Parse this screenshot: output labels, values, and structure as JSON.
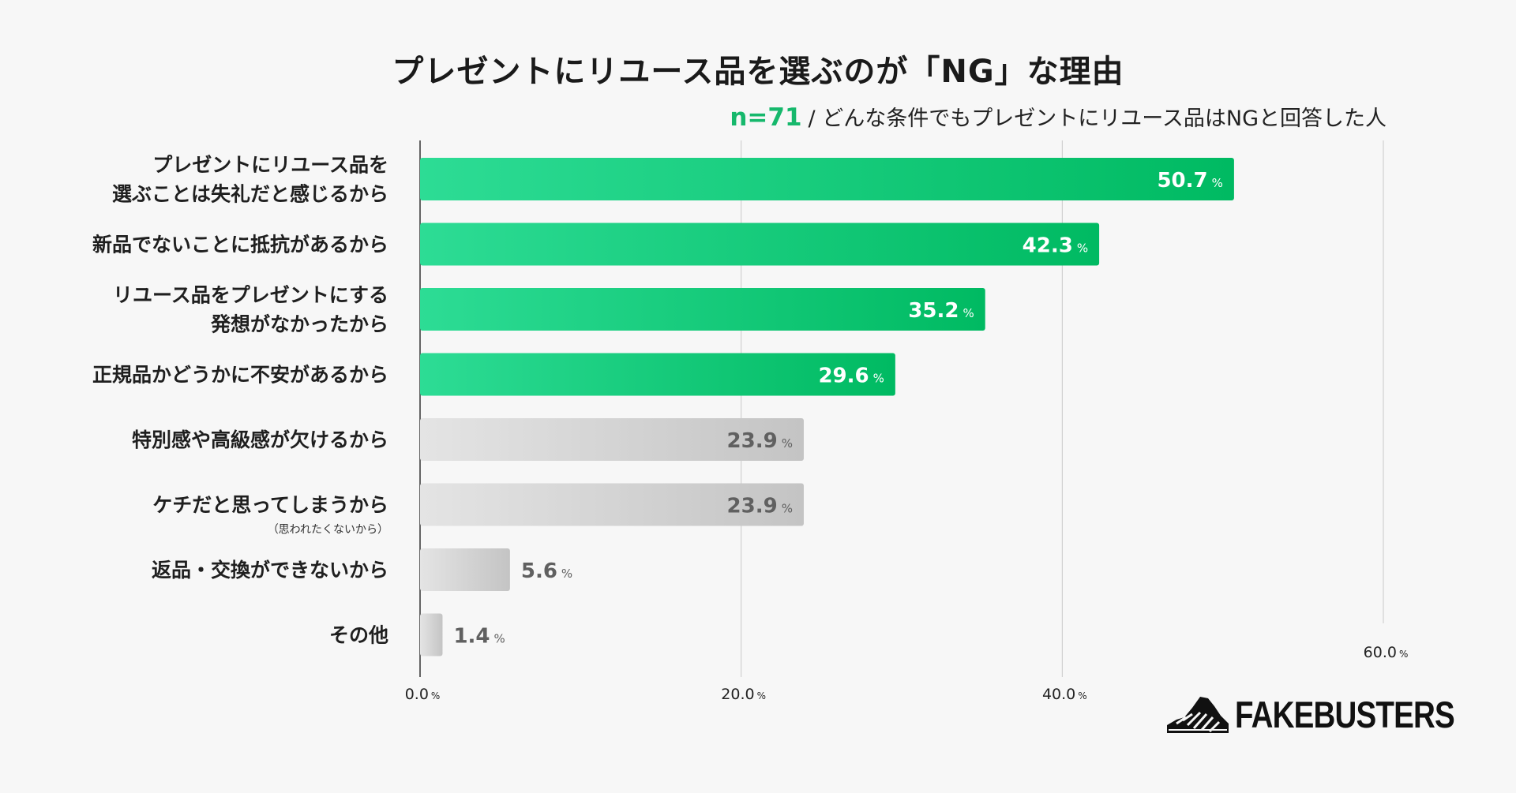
{
  "header": {
    "title": "プレゼントにリユース品を選ぶのが「NG」な理由",
    "n_label": "n=71",
    "subtitle": "/ どんな条件でもプレゼントにリユース品はNGと回答した人"
  },
  "chart_data": {
    "type": "bar",
    "orientation": "horizontal",
    "unit": "%",
    "xlim": [
      0,
      60
    ],
    "ticks": [
      {
        "value": 0,
        "label": "0.0"
      },
      {
        "value": 20,
        "label": "20.0"
      },
      {
        "value": 40,
        "label": "40.0"
      },
      {
        "value": 60,
        "label": "60.0"
      }
    ],
    "categories": [
      {
        "lines": [
          "プレゼントにリユース品を",
          "選ぶことは失礼だと感じるから"
        ],
        "note": "",
        "value": 50.7,
        "label": "50.7",
        "highlight": true
      },
      {
        "lines": [
          "新品でないことに抵抗があるから"
        ],
        "note": "",
        "value": 42.3,
        "label": "42.3",
        "highlight": true
      },
      {
        "lines": [
          "リユース品をプレゼントにする",
          "発想がなかったから"
        ],
        "note": "",
        "value": 35.2,
        "label": "35.2",
        "highlight": true
      },
      {
        "lines": [
          "正規品かどうかに不安があるから"
        ],
        "note": "",
        "value": 29.6,
        "label": "29.6",
        "highlight": true
      },
      {
        "lines": [
          "特別感や高級感が欠けるから"
        ],
        "note": "",
        "value": 23.9,
        "label": "23.9",
        "highlight": false
      },
      {
        "lines": [
          "ケチだと思ってしまうから"
        ],
        "note": "（思われたくないから）",
        "value": 23.9,
        "label": "23.9",
        "highlight": false
      },
      {
        "lines": [
          "返品・交換ができないから"
        ],
        "note": "",
        "value": 5.6,
        "label": "5.6",
        "highlight": false
      },
      {
        "lines": [
          "その他"
        ],
        "note": "",
        "value": 1.4,
        "label": "1.4",
        "highlight": false
      }
    ]
  },
  "colors": {
    "green_start": "#2ddc95",
    "green_end": "#00ba62",
    "gray_start": "#e4e4e4",
    "gray_end": "#c4c4c4",
    "value_dark": "#606060",
    "value_light": "#ffffff"
  },
  "logo": {
    "text": "FAKEBUSTERS",
    "icon": "sneaker-logo-icon"
  }
}
